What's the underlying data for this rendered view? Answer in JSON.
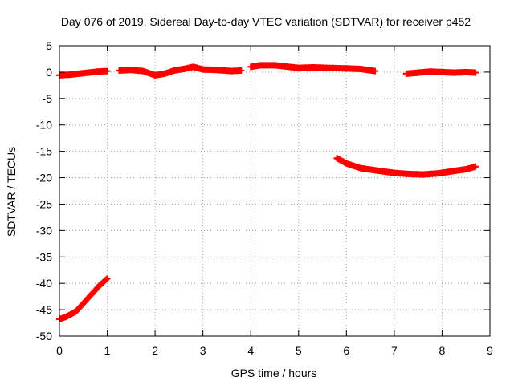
{
  "chart_data": {
    "type": "scatter",
    "title": "Day 076 of 2019, Sidereal Day-to-day VTEC variation (SDTVAR) for receiver p452",
    "xlabel": "GPS time / hours",
    "ylabel": "SDTVAR / TECUs",
    "xlim": [
      0,
      9
    ],
    "ylim": [
      -50,
      5
    ],
    "xticks": [
      0,
      1,
      2,
      3,
      4,
      5,
      6,
      7,
      8,
      9
    ],
    "yticks": [
      5,
      0,
      -5,
      -10,
      -15,
      -20,
      -25,
      -30,
      -35,
      -40,
      -45,
      -50
    ],
    "grid": true,
    "marker": "plus",
    "color": "#ff0000",
    "series": [
      {
        "x": [
          0.0,
          0.2,
          0.4,
          0.6,
          0.8,
          1.0
        ],
        "y": [
          -0.6,
          -0.5,
          -0.3,
          -0.1,
          0.1,
          0.2
        ]
      },
      {
        "x": [
          1.25,
          1.5,
          1.75,
          2.0,
          2.2,
          2.4,
          2.6,
          2.8,
          3.0,
          3.3,
          3.6,
          3.8
        ],
        "y": [
          0.3,
          0.4,
          0.2,
          -0.6,
          -0.3,
          0.3,
          0.6,
          1.0,
          0.5,
          0.4,
          0.2,
          0.3
        ]
      },
      {
        "x": [
          4.0,
          4.2,
          4.5,
          4.8,
          5.0,
          5.3,
          5.6,
          6.0,
          6.3,
          6.6
        ],
        "y": [
          1.0,
          1.3,
          1.3,
          1.0,
          0.8,
          0.9,
          0.8,
          0.7,
          0.6,
          0.2
        ]
      },
      {
        "x": [
          7.25,
          7.5,
          7.75,
          8.0,
          8.25,
          8.5,
          8.7
        ],
        "y": [
          -0.3,
          -0.1,
          0.1,
          0.0,
          -0.1,
          0.0,
          -0.1
        ]
      },
      {
        "x": [
          5.8,
          6.0,
          6.3,
          6.6,
          7.0,
          7.3,
          7.6,
          7.9,
          8.2,
          8.5,
          8.7
        ],
        "y": [
          -16.3,
          -17.3,
          -18.2,
          -18.6,
          -19.1,
          -19.3,
          -19.4,
          -19.2,
          -18.8,
          -18.4,
          -17.9
        ]
      },
      {
        "x": [
          0.0,
          0.15,
          0.35,
          0.5,
          0.7,
          0.85,
          1.0
        ],
        "y": [
          -46.8,
          -46.3,
          -45.3,
          -43.8,
          -41.8,
          -40.3,
          -39.1
        ]
      }
    ]
  }
}
